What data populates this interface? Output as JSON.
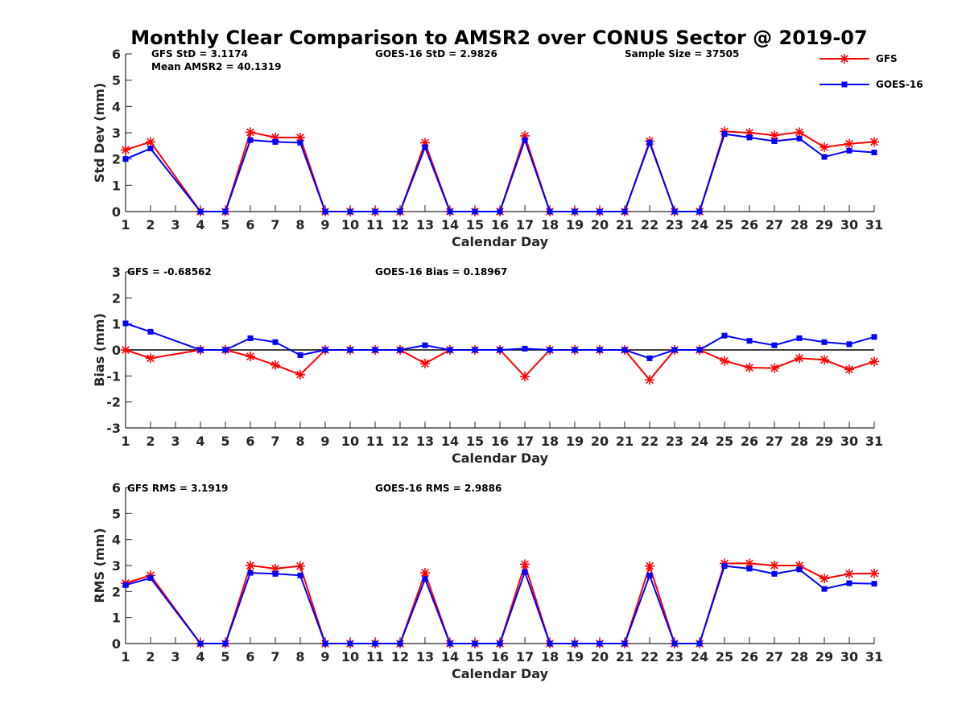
{
  "title": "Monthly Clear Comparison to AMSR2 over CONUS Sector @ 2019-07",
  "legend": [
    {
      "label": "GFS",
      "color": "#ff0000",
      "marker": "star"
    },
    {
      "label": "GOES-16",
      "color": "#0000ff",
      "marker": "square"
    }
  ],
  "chart_data": [
    {
      "type": "line",
      "xlabel": "Calendar Day",
      "ylabel": "Std Dev (mm)",
      "ylim": [
        0,
        6
      ],
      "yticks": [
        0,
        1,
        2,
        3,
        4,
        5,
        6
      ],
      "xticks": [
        1,
        2,
        3,
        4,
        5,
        6,
        7,
        8,
        9,
        10,
        11,
        12,
        13,
        14,
        15,
        16,
        17,
        18,
        19,
        20,
        21,
        22,
        23,
        24,
        25,
        26,
        27,
        28,
        29,
        30,
        31
      ],
      "annotations": [
        "GFS StD = 3.1174",
        "Mean AMSR2 = 40.1319",
        "GOES-16 StD = 2.9826",
        "Sample Size = 37505"
      ],
      "x": [
        1,
        2,
        4,
        5,
        6,
        7,
        8,
        9,
        10,
        11,
        12,
        13,
        14,
        15,
        16,
        17,
        18,
        19,
        20,
        21,
        22,
        23,
        24,
        25,
        26,
        27,
        28,
        29,
        30,
        31
      ],
      "series": [
        {
          "name": "GFS",
          "color": "#ff0000",
          "marker": "star",
          "values": [
            2.35,
            2.65,
            0,
            0,
            3.02,
            2.82,
            2.82,
            0,
            0,
            0,
            0,
            2.62,
            0,
            0,
            0,
            2.88,
            0,
            0,
            0,
            0,
            2.68,
            0,
            0,
            3.05,
            3.0,
            2.9,
            3.02,
            2.45,
            2.58,
            2.65
          ]
        },
        {
          "name": "GOES-16",
          "color": "#0000ff",
          "marker": "square",
          "values": [
            2.0,
            2.4,
            0,
            0,
            2.72,
            2.65,
            2.62,
            0,
            0,
            0,
            0,
            2.45,
            0,
            0,
            0,
            2.72,
            0,
            0,
            0,
            0,
            2.62,
            0,
            0,
            2.95,
            2.82,
            2.68,
            2.78,
            2.08,
            2.32,
            2.25
          ]
        }
      ]
    },
    {
      "type": "line",
      "xlabel": "Calendar Day",
      "ylabel": "Bias (mm)",
      "ylim": [
        -3,
        3
      ],
      "yticks": [
        -3,
        -2,
        -1,
        0,
        1,
        2,
        3
      ],
      "xticks": [
        1,
        2,
        3,
        4,
        5,
        6,
        7,
        8,
        9,
        10,
        11,
        12,
        13,
        14,
        15,
        16,
        17,
        18,
        19,
        20,
        21,
        22,
        23,
        24,
        25,
        26,
        27,
        28,
        29,
        30,
        31
      ],
      "annotations": [
        "GFS = -0.68562",
        "GOES-16 Bias = 0.18967"
      ],
      "zero_line": true,
      "x": [
        1,
        2,
        4,
        5,
        6,
        7,
        8,
        9,
        10,
        11,
        12,
        13,
        14,
        15,
        16,
        17,
        18,
        19,
        20,
        21,
        22,
        23,
        24,
        25,
        26,
        27,
        28,
        29,
        30,
        31
      ],
      "series": [
        {
          "name": "GFS",
          "color": "#ff0000",
          "marker": "star",
          "values": [
            0,
            -0.32,
            0,
            0,
            -0.25,
            -0.58,
            -0.95,
            0,
            0,
            0,
            0,
            -0.52,
            0,
            0,
            0,
            -1.02,
            0,
            0,
            0,
            0,
            -1.15,
            0,
            0,
            -0.42,
            -0.68,
            -0.7,
            -0.32,
            -0.38,
            -0.75,
            -0.45
          ]
        },
        {
          "name": "GOES-16",
          "color": "#0000ff",
          "marker": "square",
          "values": [
            1.02,
            0.7,
            0,
            0,
            0.45,
            0.3,
            -0.2,
            0,
            0,
            0,
            0,
            0.18,
            0,
            0,
            0,
            0.05,
            0,
            0,
            0,
            0,
            -0.32,
            0,
            0,
            0.55,
            0.35,
            0.18,
            0.45,
            0.3,
            0.22,
            0.5
          ]
        }
      ]
    },
    {
      "type": "line",
      "xlabel": "Calendar Day",
      "ylabel": "RMS (mm)",
      "ylim": [
        0,
        6
      ],
      "yticks": [
        0,
        1,
        2,
        3,
        4,
        5,
        6
      ],
      "xticks": [
        1,
        2,
        3,
        4,
        5,
        6,
        7,
        8,
        9,
        10,
        11,
        12,
        13,
        14,
        15,
        16,
        17,
        18,
        19,
        20,
        21,
        22,
        23,
        24,
        25,
        26,
        27,
        28,
        29,
        30,
        31
      ],
      "annotations": [
        "GFS RMS = 3.1919",
        "GOES-16 RMS = 2.9886"
      ],
      "x": [
        1,
        2,
        4,
        5,
        6,
        7,
        8,
        9,
        10,
        11,
        12,
        13,
        14,
        15,
        16,
        17,
        18,
        19,
        20,
        21,
        22,
        23,
        24,
        25,
        26,
        27,
        28,
        29,
        30,
        31
      ],
      "series": [
        {
          "name": "GFS",
          "color": "#ff0000",
          "marker": "star",
          "values": [
            2.32,
            2.62,
            0,
            0,
            3.0,
            2.88,
            2.98,
            0,
            0,
            0,
            0,
            2.72,
            0,
            0,
            0,
            3.05,
            0,
            0,
            0,
            0,
            2.98,
            0,
            0,
            3.08,
            3.08,
            3.0,
            3.0,
            2.5,
            2.68,
            2.7
          ]
        },
        {
          "name": "GOES-16",
          "color": "#0000ff",
          "marker": "square",
          "values": [
            2.25,
            2.52,
            0,
            0,
            2.72,
            2.68,
            2.62,
            0,
            0,
            0,
            0,
            2.48,
            0,
            0,
            0,
            2.75,
            0,
            0,
            0,
            0,
            2.62,
            0,
            0,
            2.98,
            2.88,
            2.68,
            2.85,
            2.1,
            2.32,
            2.3
          ]
        }
      ]
    }
  ]
}
